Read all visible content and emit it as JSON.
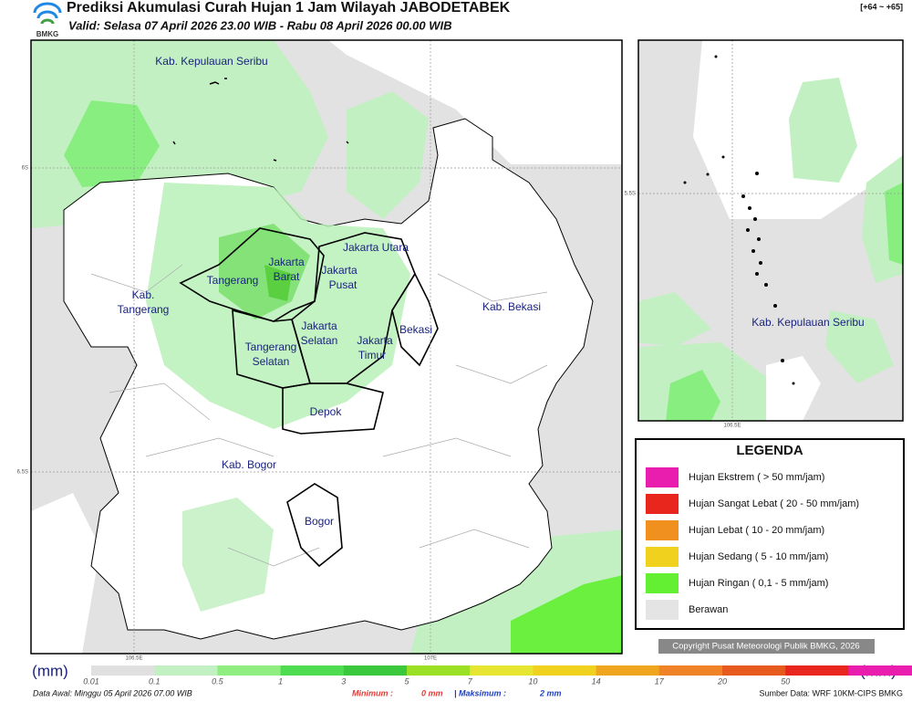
{
  "header": {
    "title": "Prediksi Akumulasi Curah Hujan 1 Jam Wilayah JABODETABEK",
    "subtitle": "Valid: Selasa 07 April 2026 23.00 WIB - Rabu 08 April 2026 00.00 WIB",
    "range": "[+64 ~ +65]",
    "logo": "BMKG"
  },
  "map": {
    "labels": [
      "Kab. Kepulauan Seribu",
      "Kab.",
      "Tangerang",
      "Tangerang",
      "Jakarta",
      "Barat",
      "Jakarta Utara",
      "Jakarta",
      "Pusat",
      "Jakarta",
      "Selatan",
      "Jakarta",
      "Timur",
      "Tangerang",
      "Selatan",
      "Bekasi",
      "Kab. Bekasi",
      "Depok",
      "Kab. Bogor",
      "Bogor"
    ],
    "lat_ticks": [
      "6S",
      "6.5S"
    ],
    "lon_ticks": [
      "106.5E",
      "107E"
    ]
  },
  "inset": {
    "label": "Kab. Kepulauan Seribu",
    "lat_tick": "5.5S",
    "lon_tick": "106.5E"
  },
  "legend": {
    "title": "LEGENDA",
    "items": [
      {
        "label": "Hujan Ekstrem ( > 50 mm/jam)",
        "color": "#e91eaf"
      },
      {
        "label": "Hujan Sangat Lebat ( 20 - 50 mm/jam)",
        "color": "#e8261e"
      },
      {
        "label": "Hujan Lebat ( 10 - 20 mm/jam)",
        "color": "#f0901e"
      },
      {
        "label": "Hujan Sedang ( 5 - 10 mm/jam)",
        "color": "#f0d21e"
      },
      {
        "label": "Hujan Ringan ( 0,1 - 5 mm/jam)",
        "color": "#64f032"
      },
      {
        "label": "Berawan",
        "color": "#e4e4e4"
      }
    ]
  },
  "copyright": "Copyright Pusat Meteorologi Publik BMKG, 2026",
  "colorbar": {
    "unit": "(mm)",
    "ticks": [
      "0.01",
      "0.1",
      "0.5",
      "1",
      "3",
      "5",
      "7",
      "10",
      "14",
      "17",
      "20",
      "50"
    ],
    "colors": [
      "#e0e0e0",
      "#c2f0c2",
      "#90ee80",
      "#50dc50",
      "#3cc83c",
      "#9be024",
      "#e6e632",
      "#f0d21e",
      "#f0a51e",
      "#f08228",
      "#e65a1e",
      "#e8261e",
      "#e91eaf"
    ]
  },
  "footer": {
    "data_awal": "Data Awal: Minggu 05 April 2026 07.00 WIB",
    "minimum_label": "Minimum :",
    "minimum": "0 mm",
    "maximum_label": "| Maksimum :",
    "maximum": "2 mm",
    "source": "Sumber Data: WRF 10KM-CIPS BMKG"
  }
}
